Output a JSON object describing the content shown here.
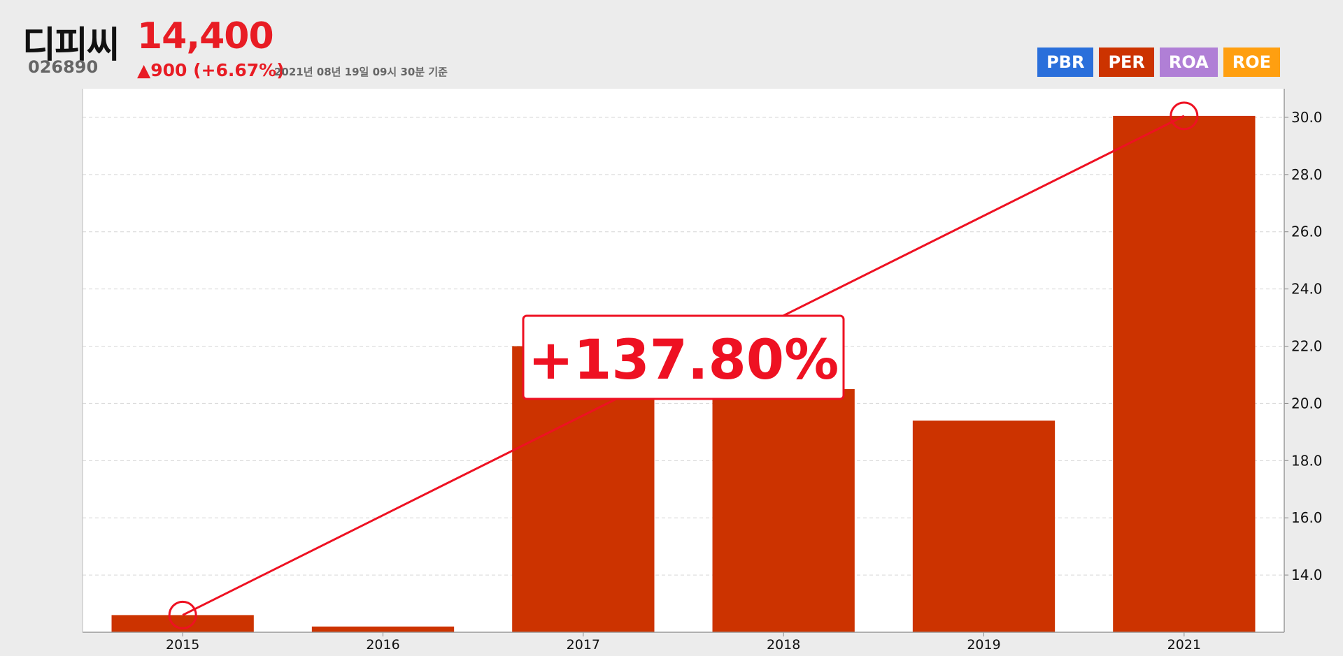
{
  "header": {
    "company": "디피씨",
    "code": "026890",
    "price": "14,400",
    "change": "▲900 (+6.67%)",
    "basis": "2021년 08년 19일 09시 30분 기준"
  },
  "tabs": [
    {
      "label": "PBR",
      "color": "#2a6fdb"
    },
    {
      "label": "PER",
      "color": "#cc3300"
    },
    {
      "label": "ROA",
      "color": "#b07fd6"
    },
    {
      "label": "ROE",
      "color": "#ff9f10"
    }
  ],
  "annotation": {
    "text": "+137.80%",
    "color": "#ee1122"
  },
  "chart_data": {
    "type": "bar",
    "categories": [
      "2015",
      "2016",
      "2017",
      "2018",
      "2019",
      "2021"
    ],
    "series": [
      {
        "values": [
          12.6,
          12.2,
          22.0,
          20.5,
          19.4,
          30.05
        ],
        "color": "#cc3300"
      }
    ],
    "y_axis_position": "right",
    "ylim": [
      12.0,
      31.0
    ],
    "yticks": [
      14.0,
      16.0,
      18.0,
      20.0,
      22.0,
      24.0,
      26.0,
      28.0,
      30.0
    ],
    "ytick_labels": [
      "14.0",
      "16.0",
      "18.0",
      "20.0",
      "22.0",
      "24.0",
      "26.0",
      "28.0",
      "30.0"
    ],
    "grid": true,
    "trend_line": {
      "from_category": "2015",
      "to_category": "2021",
      "from_value": 12.6,
      "to_value": 30.05
    }
  }
}
